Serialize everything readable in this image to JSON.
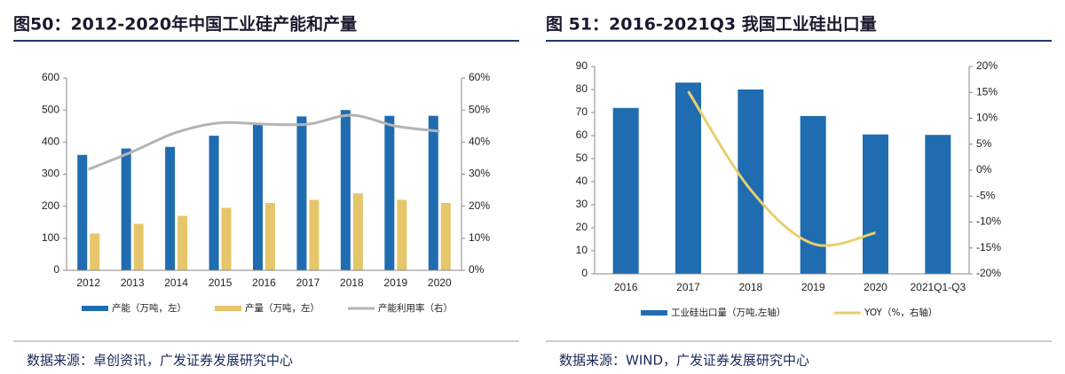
{
  "chart_data": [
    {
      "type": "combo",
      "title": "图50：2012-2020年中国工业硅产能和产量",
      "categories": [
        "2012",
        "2013",
        "2014",
        "2015",
        "2016",
        "2017",
        "2018",
        "2019",
        "2020"
      ],
      "series": [
        {
          "name": "产能（万吨，左）",
          "type": "bar",
          "color": "#1f6cb0",
          "axis": "y",
          "values": [
            360,
            380,
            385,
            420,
            455,
            480,
            500,
            482,
            482
          ]
        },
        {
          "name": "产量（万吨，左）",
          "type": "bar",
          "color": "#e6c66a",
          "axis": "y",
          "values": [
            115,
            145,
            170,
            195,
            210,
            220,
            240,
            220,
            210
          ]
        },
        {
          "name": "产能利用率（右）",
          "type": "line",
          "color": "#b4b4b4",
          "axis": "y2",
          "values": [
            31.5,
            37,
            43,
            46,
            45.6,
            45.6,
            48.4,
            45,
            43.4
          ]
        }
      ],
      "ylim": [
        0,
        600
      ],
      "yticks": [
        0,
        100,
        200,
        300,
        400,
        500,
        600
      ],
      "y2lim": [
        0,
        60
      ],
      "y2ticks": [
        {
          "value": 0,
          "label": "0%"
        },
        {
          "value": 10,
          "label": "10%"
        },
        {
          "value": 20,
          "label": "20%"
        },
        {
          "value": 30,
          "label": "30%"
        },
        {
          "value": 40,
          "label": "40%"
        },
        {
          "value": 50,
          "label": "50%"
        },
        {
          "value": 60,
          "label": "60%"
        }
      ],
      "source": "数据来源：卓创资讯，广发证券发展研究中心"
    },
    {
      "type": "combo",
      "title": "图 51：2016-2021Q3 我国工业硅出口量",
      "categories": [
        "2016",
        "2017",
        "2018",
        "2019",
        "2020",
        "2021Q1-Q3"
      ],
      "series": [
        {
          "name": "工业硅出口量（万吨,左轴）",
          "type": "bar",
          "color": "#1f6cb0",
          "axis": "y",
          "values": [
            72,
            83,
            80,
            68.5,
            60.5,
            60.3
          ]
        },
        {
          "name": "YOY（%，右轴）",
          "type": "line",
          "color": "#e8cf6e",
          "axis": "y2",
          "values": [
            null,
            15.2,
            -3.8,
            -14.2,
            -12.1,
            null
          ]
        }
      ],
      "ylim": [
        0,
        90
      ],
      "yticks": [
        0,
        10,
        20,
        30,
        40,
        50,
        60,
        70,
        80,
        90
      ],
      "y2lim": [
        -20,
        20
      ],
      "y2ticks": [
        {
          "value": -20,
          "label": "-20%"
        },
        {
          "value": -15,
          "label": "-15%"
        },
        {
          "value": -10,
          "label": "-10%"
        },
        {
          "value": -5,
          "label": "-5%"
        },
        {
          "value": 0,
          "label": "0%"
        },
        {
          "value": 5,
          "label": "5%"
        },
        {
          "value": 10,
          "label": "10%"
        },
        {
          "value": 15,
          "label": "15%"
        },
        {
          "value": 20,
          "label": "20%"
        }
      ],
      "source": "数据来源：WIND，广发证券发展研究中心"
    }
  ]
}
